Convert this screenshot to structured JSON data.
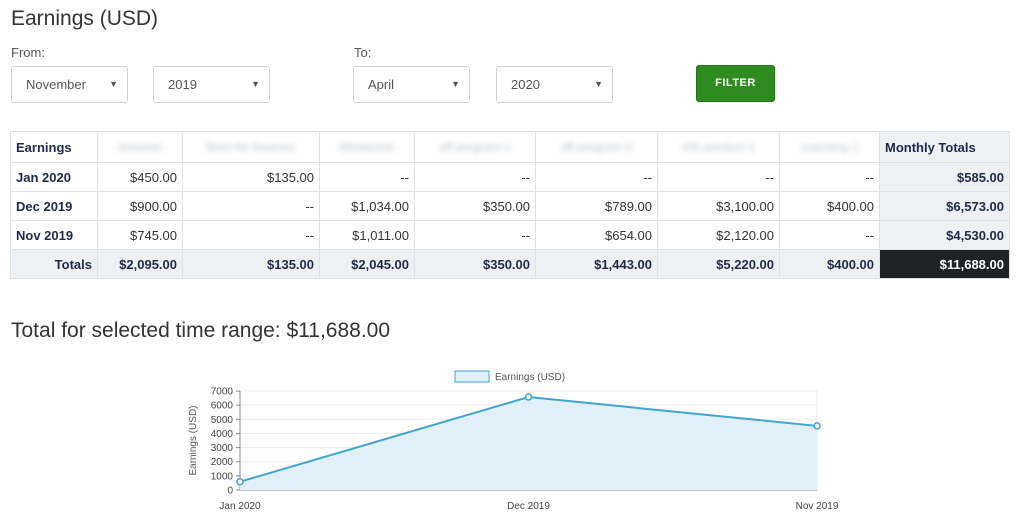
{
  "page": {
    "title": "Earnings (USD)"
  },
  "filter": {
    "from_label": "From:",
    "to_label": "To:",
    "from_month": "November",
    "from_year": "2019",
    "to_month": "April",
    "to_year": "2020",
    "button_label": "FILTER"
  },
  "table": {
    "header_first": "Earnings",
    "header_last": "Monthly Totals",
    "blurred_headers": [
      "Amazon",
      "Best Ad Sources",
      "Mediavine",
      "aff program 1",
      "aff program 2",
      "info product 1",
      "coaching 1"
    ],
    "rows": [
      {
        "label": "Jan 2020",
        "cells": [
          "$450.00",
          "$135.00",
          "--",
          "--",
          "--",
          "--",
          "--"
        ],
        "total": "$585.00"
      },
      {
        "label": "Dec 2019",
        "cells": [
          "$900.00",
          "--",
          "$1,034.00",
          "$350.00",
          "$789.00",
          "$3,100.00",
          "$400.00"
        ],
        "total": "$6,573.00"
      },
      {
        "label": "Nov 2019",
        "cells": [
          "$745.00",
          "--",
          "$1,011.00",
          "--",
          "$654.00",
          "$2,120.00",
          "--"
        ],
        "total": "$4,530.00"
      }
    ],
    "totals_label": "Totals",
    "totals": [
      "$2,095.00",
      "$135.00",
      "$2,045.00",
      "$350.00",
      "$1,443.00",
      "$5,220.00",
      "$400.00"
    ],
    "grand_total": "$11,688.00"
  },
  "summary": {
    "range_total": "Total for selected time range: $11,688.00"
  },
  "chart_data": {
    "type": "area",
    "categories": [
      "Jan 2020",
      "Dec 2019",
      "Nov 2019"
    ],
    "series": [
      {
        "name": "Earnings (USD)",
        "values": [
          585,
          6573,
          4530
        ]
      }
    ],
    "ylabel": "Earnings (USD)",
    "ylim": [
      0,
      7000
    ],
    "yticks": [
      0,
      1000,
      2000,
      3000,
      4000,
      5000,
      6000,
      7000
    ],
    "legend": "top-center",
    "grid": true,
    "colors": {
      "line": "#3ea6d1",
      "fill": "#e2f1f9"
    }
  }
}
